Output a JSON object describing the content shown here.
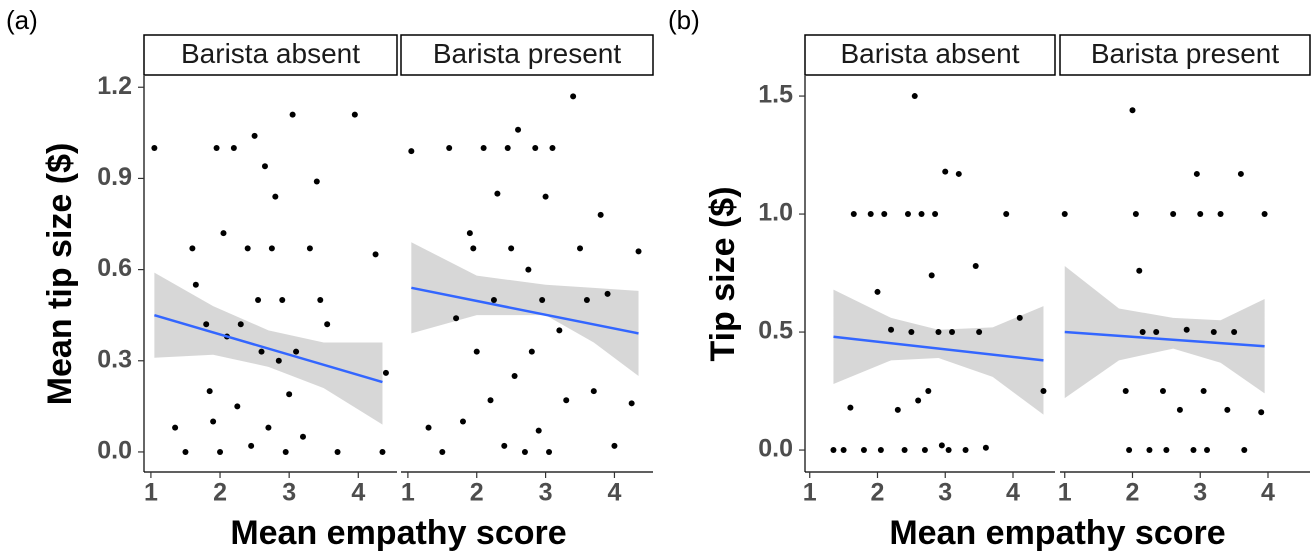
{
  "chart_data": [
    {
      "type": "scatter",
      "label": "(a)",
      "xlabel": "Mean empathy score",
      "ylabel": "Mean tip size ($)",
      "ylim": [
        -0.066,
        1.237
      ],
      "yticks": [
        {
          "value": 0,
          "label": "0.0"
        },
        0.3,
        0.6,
        0.9,
        1.2
      ],
      "point_color": "#000000",
      "fit_color": "#3366ff",
      "band_color": "#d3d3d3",
      "facets": [
        {
          "strip": "Barista absent",
          "xlim": [
            0.9,
            4.56
          ],
          "xticks": [
            1,
            2,
            3,
            4
          ],
          "x": [
            1.05,
            1.35,
            1.5,
            1.6,
            1.65,
            1.8,
            1.85,
            1.9,
            1.95,
            2.0,
            2.05,
            2.1,
            2.2,
            2.25,
            2.3,
            2.4,
            2.45,
            2.5,
            2.55,
            2.6,
            2.65,
            2.7,
            2.75,
            2.8,
            2.85,
            2.9,
            2.95,
            3.0,
            3.05,
            3.1,
            3.2,
            3.3,
            3.4,
            3.45,
            3.55,
            3.7,
            3.95,
            4.25,
            4.35,
            4.4
          ],
          "values": [
            1.0,
            0.08,
            0.0,
            0.67,
            0.55,
            0.42,
            0.2,
            0.1,
            1.0,
            0.0,
            0.72,
            0.38,
            1.0,
            0.15,
            0.42,
            0.67,
            0.02,
            1.04,
            0.5,
            0.33,
            0.94,
            0.08,
            0.67,
            0.84,
            0.3,
            0.5,
            0.0,
            0.19,
            1.11,
            0.33,
            0.05,
            0.67,
            0.89,
            0.5,
            0.42,
            0.0,
            1.11,
            0.65,
            0.0,
            0.26
          ],
          "fit": {
            "x": [
              1.05,
              4.35
            ],
            "y": [
              0.45,
              0.23
            ]
          },
          "band": {
            "x": [
              1.05,
              1.9,
              2.7,
              3.5,
              4.35
            ],
            "lower": [
              0.31,
              0.32,
              0.28,
              0.21,
              0.09
            ],
            "upper": [
              0.59,
              0.48,
              0.4,
              0.36,
              0.36
            ]
          }
        },
        {
          "strip": "Barista present",
          "xlim": [
            0.9,
            4.56
          ],
          "xticks": [
            1,
            2,
            3,
            4
          ],
          "x": [
            1.05,
            1.3,
            1.5,
            1.6,
            1.7,
            1.8,
            1.9,
            1.95,
            2.0,
            2.1,
            2.2,
            2.25,
            2.3,
            2.4,
            2.45,
            2.5,
            2.55,
            2.6,
            2.7,
            2.75,
            2.8,
            2.85,
            2.9,
            2.95,
            3.0,
            3.05,
            3.1,
            3.2,
            3.3,
            3.4,
            3.5,
            3.6,
            3.7,
            3.8,
            3.9,
            4.0,
            4.25,
            4.35
          ],
          "values": [
            0.99,
            0.08,
            0.0,
            1.0,
            0.44,
            0.1,
            0.72,
            0.67,
            0.33,
            1.0,
            0.17,
            0.5,
            0.85,
            0.02,
            1.0,
            0.67,
            0.25,
            1.06,
            0.0,
            0.6,
            0.33,
            1.0,
            0.07,
            0.5,
            0.84,
            0.0,
            1.0,
            0.4,
            0.17,
            1.17,
            0.67,
            0.5,
            0.2,
            0.78,
            0.52,
            0.02,
            0.16,
            0.66
          ],
          "fit": {
            "x": [
              1.05,
              4.35
            ],
            "y": [
              0.54,
              0.39
            ]
          },
          "band": {
            "x": [
              1.05,
              2.0,
              3.0,
              3.7,
              4.35
            ],
            "lower": [
              0.39,
              0.45,
              0.45,
              0.36,
              0.25
            ],
            "upper": [
              0.69,
              0.58,
              0.55,
              0.54,
              0.53
            ]
          }
        }
      ]
    },
    {
      "type": "scatter",
      "label": "(b)",
      "xlabel": "Mean empathy score",
      "ylabel": "Tip size ($)",
      "ylim": [
        -0.093,
        1.585
      ],
      "yticks": [
        {
          "value": 0,
          "label": "0.0"
        },
        0.5,
        {
          "value": 1,
          "label": "1.0"
        },
        1.5
      ],
      "point_color": "#000000",
      "fit_color": "#3366ff",
      "band_color": "#d3d3d3",
      "facets": [
        {
          "strip": "Barista absent",
          "xlim": [
            0.93,
            4.62
          ],
          "xticks": [
            1,
            2,
            3,
            4
          ],
          "x": [
            1.35,
            1.5,
            1.6,
            1.65,
            1.8,
            1.9,
            2.0,
            2.05,
            2.1,
            2.2,
            2.3,
            2.4,
            2.45,
            2.5,
            2.55,
            2.6,
            2.65,
            2.7,
            2.75,
            2.8,
            2.85,
            2.9,
            2.95,
            3.0,
            3.05,
            3.1,
            3.2,
            3.3,
            3.45,
            3.5,
            3.6,
            3.9,
            4.1,
            4.45
          ],
          "values": [
            0.0,
            0.0,
            0.18,
            1.0,
            0.0,
            1.0,
            0.67,
            0.0,
            1.0,
            0.51,
            0.17,
            0.0,
            1.0,
            0.5,
            1.5,
            0.21,
            1.0,
            0.0,
            0.25,
            0.74,
            1.0,
            0.5,
            0.02,
            1.18,
            0.0,
            0.5,
            1.17,
            0.0,
            0.78,
            0.5,
            0.01,
            1.0,
            0.56,
            0.25
          ],
          "fit": {
            "x": [
              1.35,
              4.45
            ],
            "y": [
              0.48,
              0.38
            ]
          },
          "band": {
            "x": [
              1.35,
              2.2,
              2.9,
              3.7,
              4.45
            ],
            "lower": [
              0.28,
              0.38,
              0.39,
              0.31,
              0.15
            ],
            "upper": [
              0.68,
              0.56,
              0.51,
              0.52,
              0.61
            ]
          }
        },
        {
          "strip": "Barista present",
          "xlim": [
            0.93,
            4.62
          ],
          "xticks": [
            1,
            2,
            3,
            4
          ],
          "x": [
            1.0,
            1.9,
            1.95,
            2.0,
            2.05,
            2.1,
            2.15,
            2.25,
            2.35,
            2.45,
            2.5,
            2.6,
            2.7,
            2.8,
            2.9,
            2.95,
            3.0,
            3.05,
            3.1,
            3.2,
            3.3,
            3.4,
            3.5,
            3.6,
            3.65,
            3.9,
            3.95
          ],
          "values": [
            1.0,
            0.25,
            0.0,
            1.44,
            1.0,
            0.76,
            0.5,
            0.0,
            0.5,
            0.25,
            0.0,
            1.0,
            0.17,
            0.51,
            0.0,
            1.17,
            1.0,
            0.25,
            0.0,
            0.5,
            1.0,
            0.17,
            0.5,
            1.17,
            0.0,
            0.16,
            1.0
          ],
          "fit": {
            "x": [
              1.0,
              3.95
            ],
            "y": [
              0.5,
              0.44
            ]
          },
          "band": {
            "x": [
              1.0,
              1.8,
              2.6,
              3.3,
              3.95
            ],
            "lower": [
              0.22,
              0.38,
              0.43,
              0.37,
              0.24
            ],
            "upper": [
              0.78,
              0.6,
              0.56,
              0.55,
              0.64
            ]
          }
        }
      ]
    }
  ]
}
